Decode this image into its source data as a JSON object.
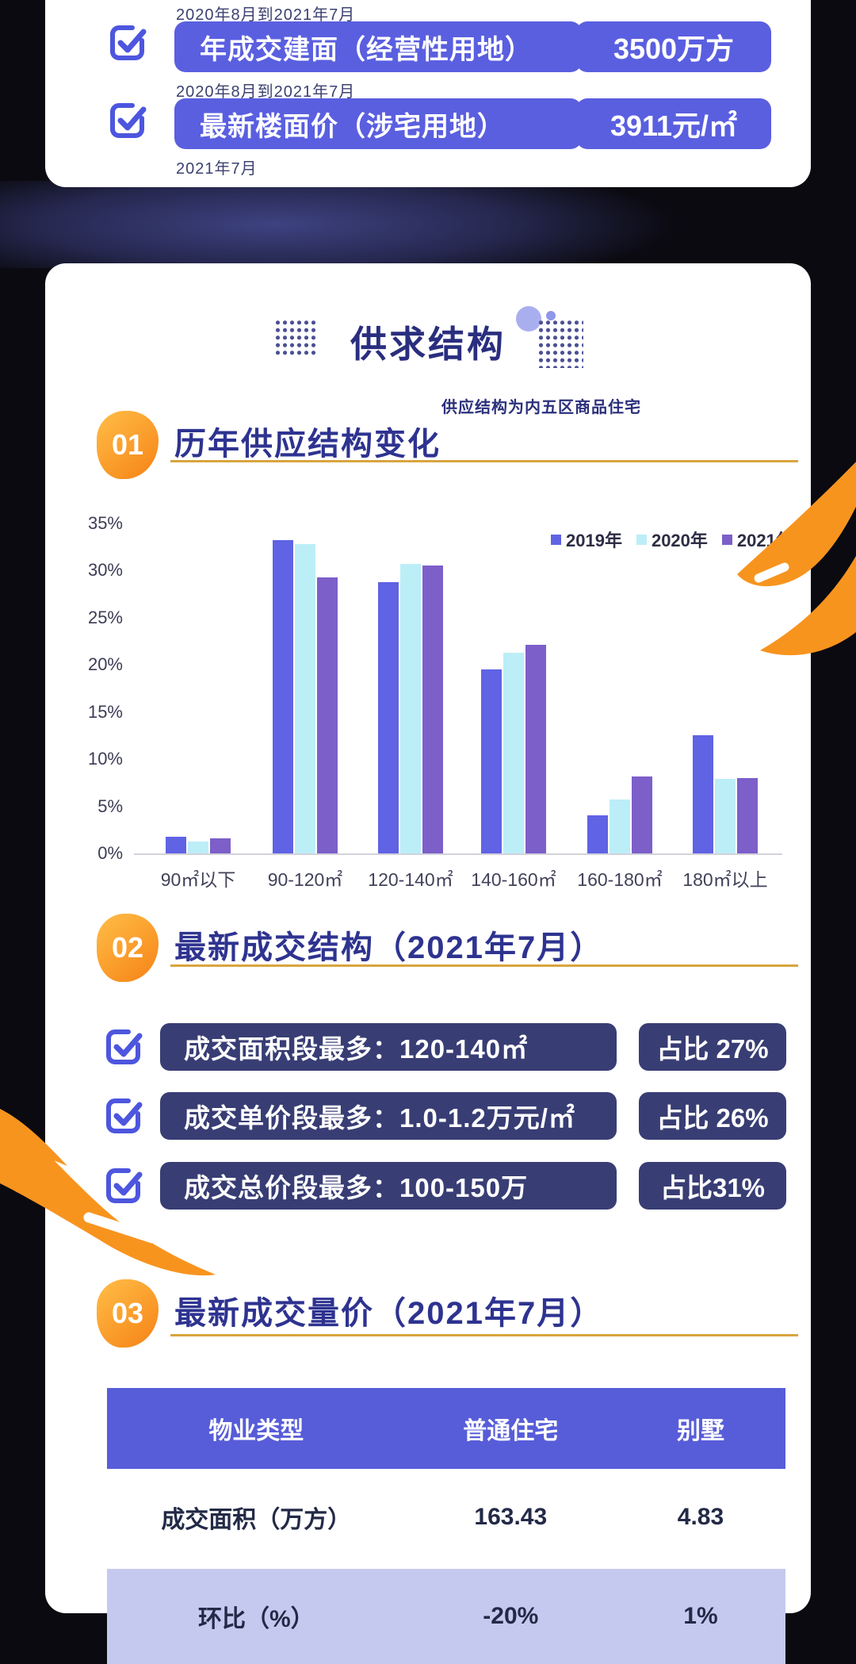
{
  "top_card": {
    "rows": [
      {
        "period": "2020年8月到2021年7月",
        "label": "年成交建面（经营性用地）",
        "value": "3500万方"
      },
      {
        "period": "2020年8月到2021年7月",
        "label": "最新楼面价（涉宅用地）",
        "value": "3911元/㎡"
      }
    ],
    "footer_period": "2021年7月"
  },
  "main_card": {
    "title": "供求结构",
    "subtitle": "供应结构为内五区商品住宅",
    "sections": [
      {
        "number": "01",
        "heading": "历年供应结构变化"
      },
      {
        "number": "02",
        "heading": "最新成交结构（2021年7月）"
      },
      {
        "number": "03",
        "heading": "最新成交量价（2021年7月）"
      }
    ],
    "stats": [
      {
        "label": "成交面积段最多：120-140㎡",
        "value": "占比 27%"
      },
      {
        "label": "成交单价段最多：1.0-1.2万元/㎡",
        "value": "占比 26%"
      },
      {
        "label": "成交总价段最多：100-150万",
        "value": "占比31%"
      }
    ],
    "table": {
      "headers": [
        "物业类型",
        "普通住宅",
        "别墅"
      ],
      "rows": [
        {
          "label": "成交面积（万方）",
          "values": [
            "163.43",
            "4.83"
          ]
        },
        {
          "label": "环比（%）",
          "values": [
            "-20%",
            "1%"
          ]
        }
      ]
    }
  },
  "chart_data": {
    "type": "bar",
    "title": "历年供应结构变化",
    "categories": [
      "90㎡以下",
      "90-120㎡",
      "120-140㎡",
      "140-160㎡",
      "160-180㎡",
      "180㎡以上"
    ],
    "series": [
      {
        "name": "2019年",
        "color": "#5f63e4",
        "values": [
          1.8,
          33.2,
          28.8,
          19.5,
          4.0,
          12.5
        ]
      },
      {
        "name": "2020年",
        "color": "#bceef8",
        "values": [
          1.3,
          32.8,
          30.7,
          21.3,
          5.7,
          7.9
        ]
      },
      {
        "name": "2021年",
        "color": "#7c5fc9",
        "values": [
          1.6,
          29.3,
          30.5,
          22.1,
          8.2,
          8.0
        ]
      }
    ],
    "xlabel": "",
    "ylabel": "",
    "ylim": [
      0,
      35
    ],
    "yticks": [
      "0%",
      "5%",
      "10%",
      "15%",
      "20%",
      "25%",
      "30%",
      "35%"
    ],
    "grid": false,
    "legend_position": "upper right"
  },
  "colors": {
    "accent_indigo": "#5a5fe0",
    "dark_navy_pill": "#383d74",
    "heading_navy": "#2e3390",
    "gold_rule": "#d8a53e",
    "badge_orange": "#f78b1d",
    "table_header": "#575dd8",
    "table_alt_row": "#c6c9ef",
    "background": "#0b0a11"
  }
}
